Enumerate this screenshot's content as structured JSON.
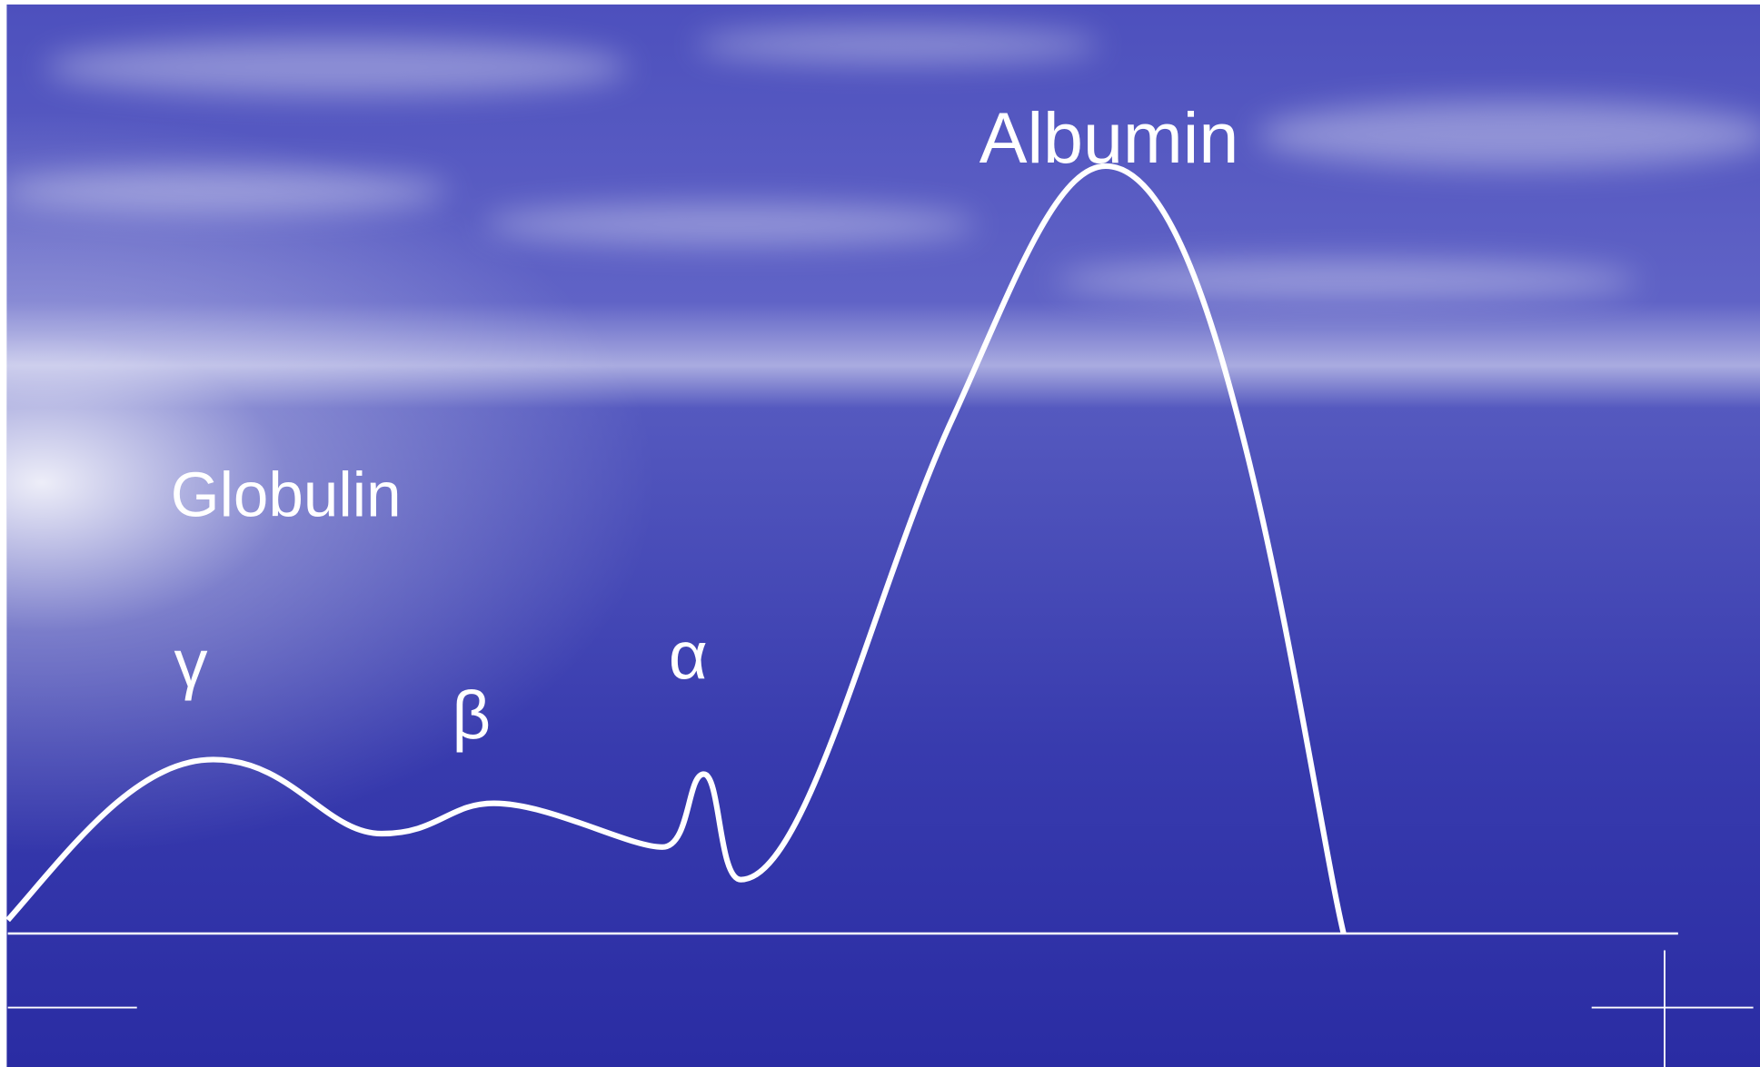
{
  "labels": {
    "albumin": "Albumin",
    "globulin": "Globulin",
    "gamma": "γ",
    "beta": "β",
    "alpha": "α"
  }
}
